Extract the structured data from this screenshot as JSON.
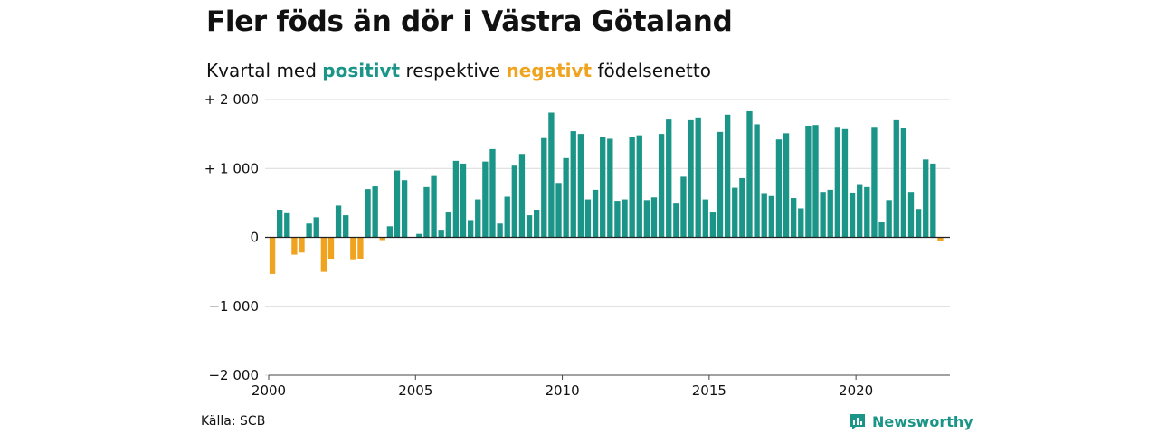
{
  "header": {
    "title": "Fler föds än dör i Västra Götaland",
    "subtitle_pre": "Kvartal med ",
    "subtitle_pos": "positivt",
    "subtitle_mid": " respektive ",
    "subtitle_neg": "negativt",
    "subtitle_post": " födelsenetto"
  },
  "footer": {
    "source": "Källa: SCB",
    "brand": "Newsworthy"
  },
  "colors": {
    "positive": "#1a9587",
    "negative": "#f0a31f",
    "grid": "#d9d9d9",
    "zero_line": "#222222"
  },
  "chart_data": {
    "type": "bar",
    "x_start_year": 2000,
    "periods_per_year": 4,
    "xlim": [
      2000,
      2023.2
    ],
    "ylim": [
      -2000,
      2000
    ],
    "y_ticks": [
      2000,
      1000,
      0,
      -1000,
      -2000
    ],
    "y_tick_labels": [
      "+ 2 000",
      "+ 1 000",
      "0",
      "−1 000",
      "−2 000"
    ],
    "x_ticks": [
      2000,
      2005,
      2010,
      2015,
      2020
    ],
    "x_tick_labels": [
      "2000",
      "2005",
      "2010",
      "2015",
      "2020"
    ],
    "grid": true,
    "values": [
      -530,
      400,
      350,
      -250,
      -220,
      200,
      290,
      -500,
      -310,
      460,
      320,
      -330,
      -310,
      700,
      740,
      -40,
      160,
      970,
      830,
      0,
      50,
      730,
      890,
      110,
      360,
      1110,
      1070,
      250,
      550,
      1100,
      1280,
      200,
      590,
      1040,
      1210,
      320,
      400,
      1440,
      1810,
      790,
      1150,
      1540,
      1500,
      550,
      690,
      1460,
      1430,
      530,
      550,
      1460,
      1480,
      540,
      580,
      1500,
      1710,
      490,
      880,
      1700,
      1740,
      550,
      360,
      1530,
      1780,
      720,
      860,
      1830,
      1640,
      630,
      600,
      1420,
      1510,
      570,
      420,
      1620,
      1630,
      660,
      690,
      1590,
      1570,
      650,
      760,
      730,
      1590,
      220,
      540,
      1700,
      1580,
      660,
      410,
      1130,
      1070,
      -50
    ]
  }
}
